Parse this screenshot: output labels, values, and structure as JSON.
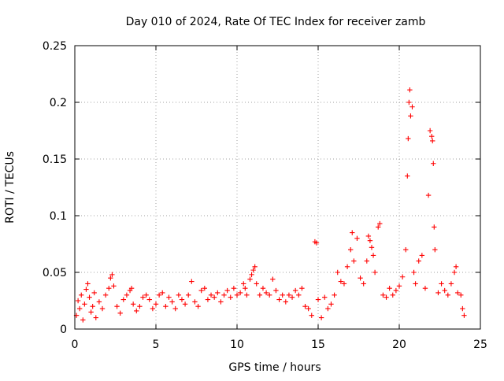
{
  "chart_data": {
    "type": "scatter",
    "title": "Day 010 of 2024, Rate Of TEC Index for receiver zamb",
    "xlabel": "GPS time / hours",
    "ylabel": "ROTI / TECUs",
    "xlim": [
      0,
      25
    ],
    "ylim": [
      0,
      0.25
    ],
    "x_ticks": [
      0,
      5,
      10,
      15,
      20,
      25
    ],
    "x_tick_labels": [
      "0",
      "5",
      "10",
      "15",
      "20",
      "25"
    ],
    "y_ticks": [
      0,
      0.05,
      0.1,
      0.15,
      0.2,
      0.25
    ],
    "y_tick_labels": [
      "0",
      "0.05",
      "0.1",
      "0.15",
      "0.2",
      "0.25"
    ],
    "grid": true,
    "marker": "+",
    "color": "#ff0000",
    "series": [
      {
        "name": "ROTI",
        "points": [
          [
            0.1,
            0.012
          ],
          [
            0.2,
            0.025
          ],
          [
            0.3,
            0.018
          ],
          [
            0.4,
            0.03
          ],
          [
            0.5,
            0.008
          ],
          [
            0.6,
            0.022
          ],
          [
            0.7,
            0.035
          ],
          [
            0.8,
            0.04
          ],
          [
            0.9,
            0.028
          ],
          [
            1.0,
            0.015
          ],
          [
            1.1,
            0.02
          ],
          [
            1.2,
            0.032
          ],
          [
            1.3,
            0.01
          ],
          [
            1.5,
            0.024
          ],
          [
            1.7,
            0.018
          ],
          [
            1.9,
            0.03
          ],
          [
            2.1,
            0.036
          ],
          [
            2.2,
            0.045
          ],
          [
            2.3,
            0.048
          ],
          [
            2.4,
            0.038
          ],
          [
            2.6,
            0.02
          ],
          [
            2.8,
            0.014
          ],
          [
            3.0,
            0.026
          ],
          [
            3.2,
            0.03
          ],
          [
            3.4,
            0.034
          ],
          [
            3.5,
            0.036
          ],
          [
            3.6,
            0.022
          ],
          [
            3.8,
            0.016
          ],
          [
            4.0,
            0.02
          ],
          [
            4.2,
            0.028
          ],
          [
            4.4,
            0.03
          ],
          [
            4.6,
            0.026
          ],
          [
            4.8,
            0.018
          ],
          [
            5.0,
            0.022
          ],
          [
            5.2,
            0.03
          ],
          [
            5.4,
            0.032
          ],
          [
            5.6,
            0.02
          ],
          [
            5.8,
            0.028
          ],
          [
            6.0,
            0.024
          ],
          [
            6.2,
            0.018
          ],
          [
            6.4,
            0.03
          ],
          [
            6.6,
            0.026
          ],
          [
            6.8,
            0.022
          ],
          [
            7.0,
            0.03
          ],
          [
            7.2,
            0.042
          ],
          [
            7.4,
            0.024
          ],
          [
            7.6,
            0.02
          ],
          [
            7.8,
            0.034
          ],
          [
            8.0,
            0.036
          ],
          [
            8.2,
            0.026
          ],
          [
            8.4,
            0.03
          ],
          [
            8.6,
            0.028
          ],
          [
            8.8,
            0.032
          ],
          [
            9.0,
            0.024
          ],
          [
            9.2,
            0.03
          ],
          [
            9.4,
            0.034
          ],
          [
            9.6,
            0.028
          ],
          [
            9.8,
            0.036
          ],
          [
            10.0,
            0.03
          ],
          [
            10.2,
            0.032
          ],
          [
            10.4,
            0.04
          ],
          [
            10.5,
            0.036
          ],
          [
            10.6,
            0.03
          ],
          [
            10.8,
            0.044
          ],
          [
            10.9,
            0.048
          ],
          [
            11.0,
            0.052
          ],
          [
            11.1,
            0.055
          ],
          [
            11.2,
            0.04
          ],
          [
            11.4,
            0.03
          ],
          [
            11.6,
            0.036
          ],
          [
            11.8,
            0.032
          ],
          [
            12.0,
            0.03
          ],
          [
            12.2,
            0.044
          ],
          [
            12.4,
            0.034
          ],
          [
            12.6,
            0.026
          ],
          [
            12.8,
            0.03
          ],
          [
            13.0,
            0.024
          ],
          [
            13.2,
            0.03
          ],
          [
            13.4,
            0.028
          ],
          [
            13.6,
            0.034
          ],
          [
            13.8,
            0.03
          ],
          [
            14.0,
            0.036
          ],
          [
            14.2,
            0.02
          ],
          [
            14.4,
            0.018
          ],
          [
            14.6,
            0.012
          ],
          [
            14.8,
            0.077
          ],
          [
            14.9,
            0.076
          ],
          [
            15.0,
            0.026
          ],
          [
            15.2,
            0.01
          ],
          [
            15.4,
            0.028
          ],
          [
            15.6,
            0.018
          ],
          [
            15.8,
            0.022
          ],
          [
            16.0,
            0.03
          ],
          [
            16.2,
            0.05
          ],
          [
            16.4,
            0.042
          ],
          [
            16.6,
            0.04
          ],
          [
            16.8,
            0.055
          ],
          [
            17.0,
            0.07
          ],
          [
            17.1,
            0.085
          ],
          [
            17.2,
            0.06
          ],
          [
            17.4,
            0.08
          ],
          [
            17.6,
            0.045
          ],
          [
            17.8,
            0.04
          ],
          [
            18.0,
            0.06
          ],
          [
            18.1,
            0.082
          ],
          [
            18.2,
            0.078
          ],
          [
            18.3,
            0.072
          ],
          [
            18.4,
            0.065
          ],
          [
            18.5,
            0.05
          ],
          [
            18.7,
            0.09
          ],
          [
            18.8,
            0.093
          ],
          [
            19.0,
            0.03
          ],
          [
            19.2,
            0.028
          ],
          [
            19.4,
            0.036
          ],
          [
            19.6,
            0.03
          ],
          [
            19.8,
            0.034
          ],
          [
            20.0,
            0.038
          ],
          [
            20.2,
            0.046
          ],
          [
            20.4,
            0.07
          ],
          [
            20.5,
            0.135
          ],
          [
            20.55,
            0.168
          ],
          [
            20.6,
            0.2
          ],
          [
            20.65,
            0.211
          ],
          [
            20.7,
            0.188
          ],
          [
            20.8,
            0.196
          ],
          [
            20.9,
            0.05
          ],
          [
            21.0,
            0.04
          ],
          [
            21.2,
            0.06
          ],
          [
            21.4,
            0.065
          ],
          [
            21.6,
            0.036
          ],
          [
            21.8,
            0.118
          ],
          [
            21.9,
            0.175
          ],
          [
            22.0,
            0.17
          ],
          [
            22.05,
            0.166
          ],
          [
            22.1,
            0.146
          ],
          [
            22.15,
            0.09
          ],
          [
            22.2,
            0.07
          ],
          [
            22.4,
            0.032
          ],
          [
            22.6,
            0.04
          ],
          [
            22.8,
            0.034
          ],
          [
            23.0,
            0.03
          ],
          [
            23.2,
            0.04
          ],
          [
            23.4,
            0.05
          ],
          [
            23.5,
            0.055
          ],
          [
            23.6,
            0.032
          ],
          [
            23.8,
            0.03
          ],
          [
            23.9,
            0.018
          ],
          [
            24.0,
            0.012
          ]
        ]
      }
    ]
  }
}
